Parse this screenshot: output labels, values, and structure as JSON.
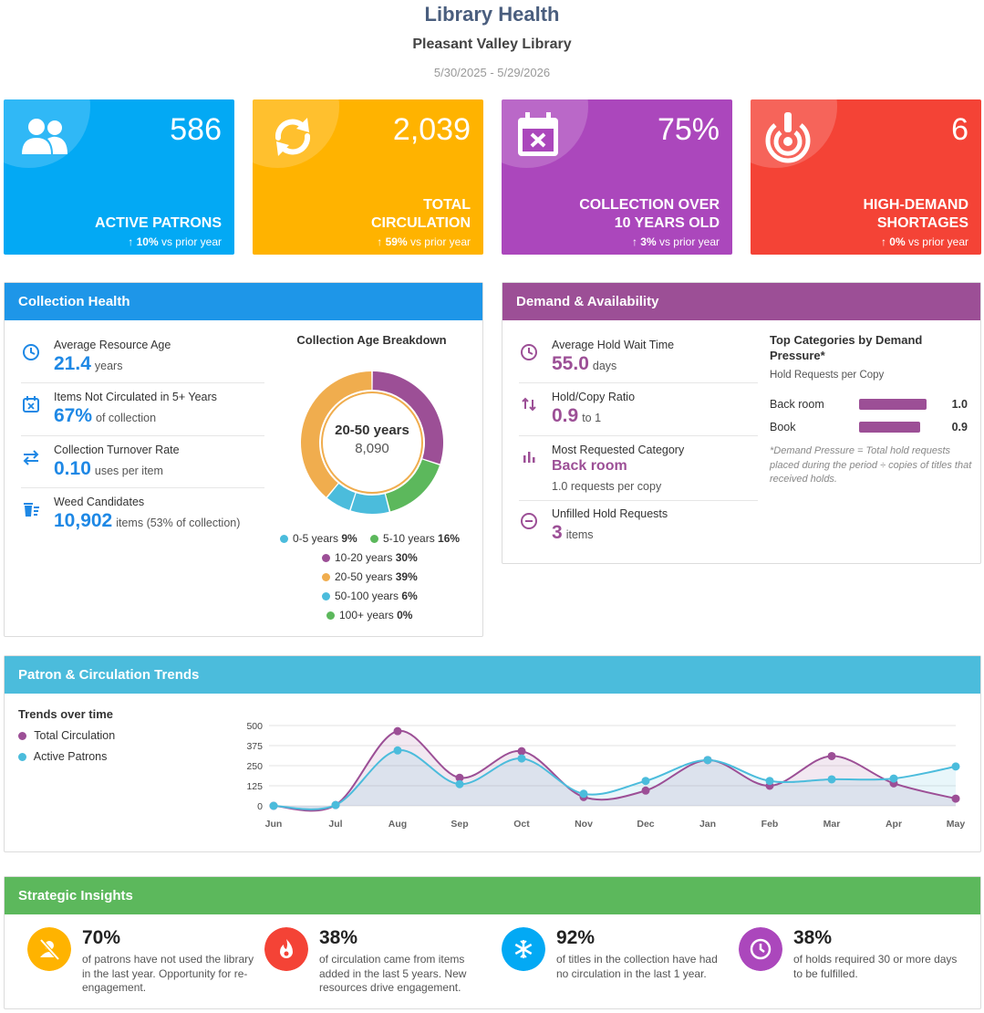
{
  "header": {
    "title": "Library Health",
    "library": "Pleasant Valley Library",
    "date_range": "5/30/2025 - 5/29/2026"
  },
  "kpis": [
    {
      "value": "586",
      "label": "ACTIVE PATRONS",
      "change": "10%",
      "change_suffix": "vs prior year",
      "arrow": "↑",
      "color": "#03a9f4",
      "icon": "people-icon"
    },
    {
      "value": "2,039",
      "label": "TOTAL CIRCULATION",
      "change": "59%",
      "change_suffix": "vs prior year",
      "arrow": "↑",
      "color": "#ffb300",
      "icon": "refresh-icon"
    },
    {
      "value": "75%",
      "label": "COLLECTION OVER 10 YEARS OLD",
      "change": "3%",
      "change_suffix": "vs prior year",
      "arrow": "↑",
      "color": "#ab47bc",
      "icon": "calendar-x-icon"
    },
    {
      "value": "6",
      "label": "HIGH-DEMAND SHORTAGES",
      "change": "0%",
      "change_suffix": "vs prior year",
      "arrow": "↑",
      "color": "#f44336",
      "icon": "alert-target-icon"
    }
  ],
  "collection_health": {
    "title": "Collection Health",
    "metrics": [
      {
        "label": "Average Resource Age",
        "value": "21.4",
        "unit": "years",
        "icon": "clock-icon"
      },
      {
        "label": "Items Not Circulated in 5+ Years",
        "value": "67%",
        "unit": "of collection",
        "icon": "calendar-x-icon"
      },
      {
        "label": "Collection Turnover Rate",
        "value": "0.10",
        "unit": "uses per item",
        "icon": "swap-arrows-icon"
      },
      {
        "label": "Weed Candidates",
        "value": "10,902",
        "unit": "items (53% of collection)",
        "icon": "trash-list-icon"
      }
    ],
    "donut": {
      "title": "Collection Age Breakdown",
      "center_label": "20-50 years",
      "center_value": "8,090"
    }
  },
  "demand": {
    "title": "Demand & Availability",
    "metrics": [
      {
        "label": "Average Hold Wait Time",
        "value": "55.0",
        "unit": "days",
        "icon": "clock-icon"
      },
      {
        "label": "Hold/Copy Ratio",
        "value": "0.9",
        "unit": "to 1",
        "icon": "sort-arrows-icon"
      },
      {
        "label": "Most Requested Category",
        "value": "Back room",
        "unit": "1.0 requests per copy",
        "icon": "bar-chart-icon"
      },
      {
        "label": "Unfilled Hold Requests",
        "value": "3",
        "unit": "items",
        "icon": "minus-circle-icon"
      }
    ],
    "top_categories": {
      "title": "Top Categories by Demand Pressure*",
      "subtitle": "Hold Requests per Copy",
      "items": [
        {
          "name": "Back room",
          "value": "1.0",
          "ratio": 1.0
        },
        {
          "name": "Book",
          "value": "0.9",
          "ratio": 0.9
        }
      ],
      "footnote": "*Demand Pressure = Total hold requests placed during the period ÷ copies of titles that received holds."
    }
  },
  "trends": {
    "title": "Patron & Circulation Trends",
    "subtitle": "Trends over time",
    "legend": [
      {
        "name": "Total Circulation",
        "color": "#9c4f96"
      },
      {
        "name": "Active Patrons",
        "color": "#4bbcdc"
      }
    ]
  },
  "chart_data": {
    "type": "area",
    "categories": [
      "Jun",
      "Jul",
      "Aug",
      "Sep",
      "Oct",
      "Nov",
      "Dec",
      "Jan",
      "Feb",
      "Mar",
      "Apr",
      "May"
    ],
    "series": [
      {
        "name": "Total Circulation",
        "color": "#9c4f96",
        "values": [
          0,
          5,
          465,
          175,
          340,
          55,
          95,
          285,
          125,
          310,
          140,
          45
        ]
      },
      {
        "name": "Active Patrons",
        "color": "#4bbcdc",
        "values": [
          0,
          5,
          345,
          135,
          295,
          75,
          155,
          285,
          155,
          165,
          170,
          245
        ]
      }
    ],
    "ylim": [
      0,
      500
    ],
    "yticks": [
      "0",
      "125",
      "250",
      "375",
      "500"
    ],
    "grid": true
  },
  "collection_age": {
    "type": "pie",
    "segments": [
      {
        "label": "0-5 years",
        "pct": "9%",
        "value": 9,
        "color": "#4bbcdc"
      },
      {
        "label": "5-10 years",
        "pct": "16%",
        "value": 16,
        "color": "#5cb85c"
      },
      {
        "label": "10-20 years",
        "pct": "30%",
        "value": 30,
        "color": "#9c4f96"
      },
      {
        "label": "20-50 years",
        "pct": "39%",
        "value": 39,
        "color": "#f0ad4e"
      },
      {
        "label": "50-100 years",
        "pct": "6%",
        "value": 6,
        "color": "#4bbcdc"
      },
      {
        "label": "100+ years",
        "pct": "0%",
        "value": 0,
        "color": "#5cb85c"
      }
    ]
  },
  "insights": {
    "title": "Strategic Insights",
    "items": [
      {
        "pct": "70%",
        "text": "of patrons have not used the library in the last year. Opportunity for re-engagement.",
        "color": "#ffb300",
        "icon": "user-off-icon"
      },
      {
        "pct": "38%",
        "text": "of circulation came from items added in the last 5 years. New resources drive engagement.",
        "color": "#f44336",
        "icon": "flame-icon"
      },
      {
        "pct": "92%",
        "text": "of titles in the collection have had no circulation in the last 1 year.",
        "color": "#03a9f4",
        "icon": "snowflake-icon"
      },
      {
        "pct": "38%",
        "text": "of holds required 30 or more days to be fulfilled.",
        "color": "#ab47bc",
        "icon": "clock-icon"
      }
    ]
  }
}
